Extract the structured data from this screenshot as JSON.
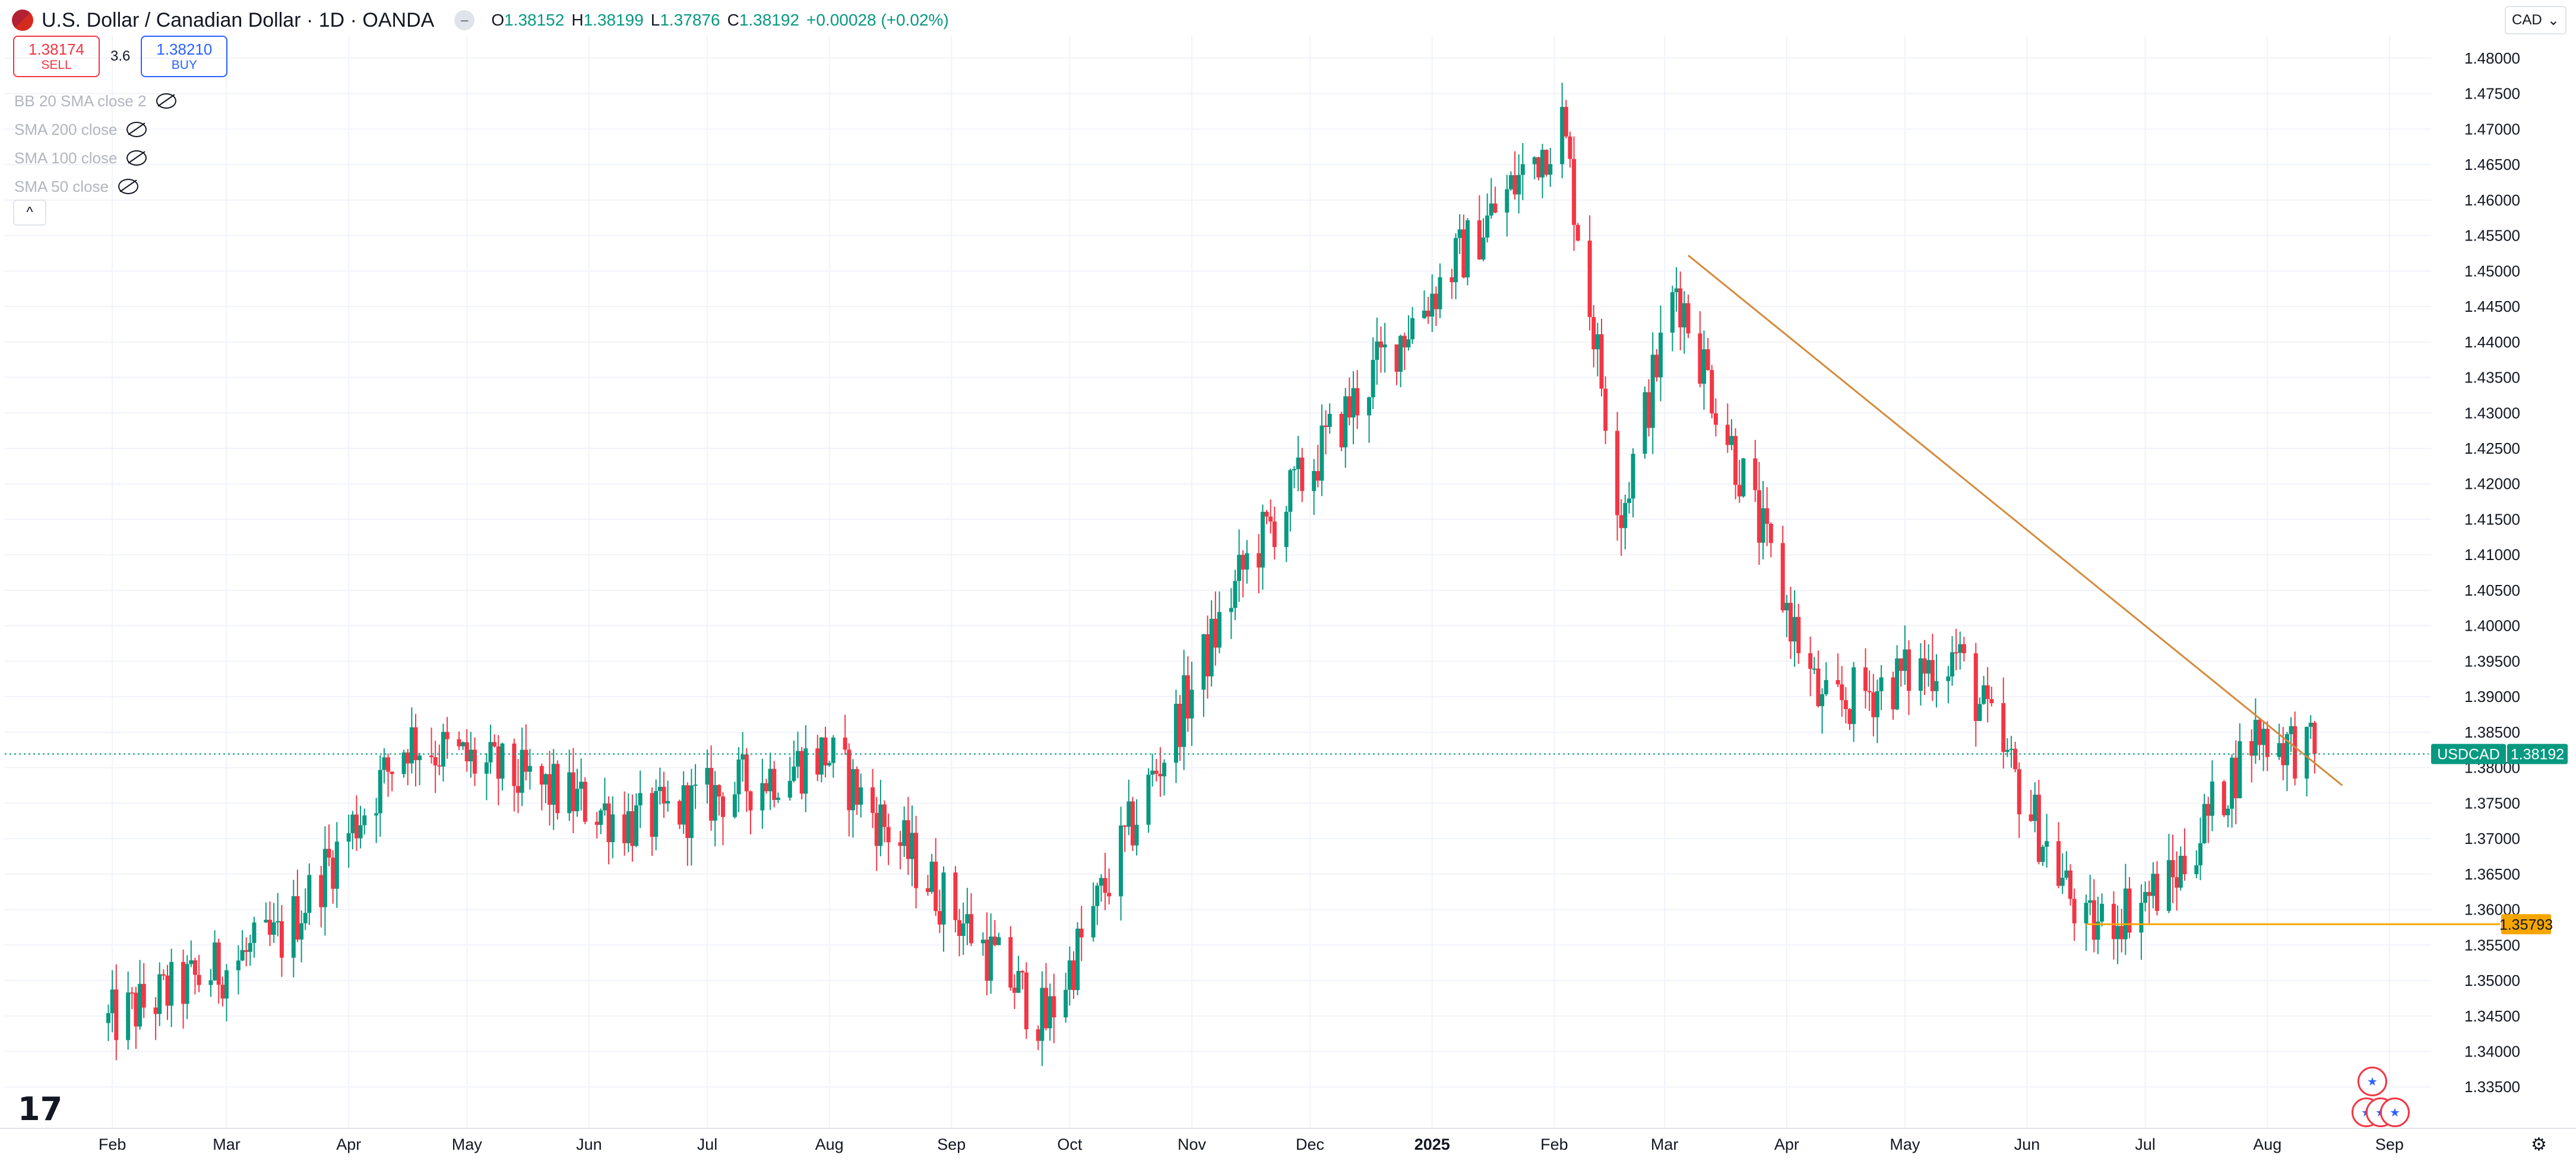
{
  "header": {
    "symbol_title": "U.S. Dollar / Canadian Dollar · 1D · OANDA",
    "ohlc": {
      "o_label": "O",
      "o": "1.38152",
      "h_label": "H",
      "h": "1.38199",
      "l_label": "L",
      "l": "1.37876",
      "c_label": "C",
      "c": "1.38192",
      "change": "+0.00028 (+0.02%)"
    }
  },
  "trade": {
    "sell_price": "1.38174",
    "sell_label": "SELL",
    "spread": "3.6",
    "buy_price": "1.38210",
    "buy_label": "BUY"
  },
  "indicators": [
    {
      "label": "BB 20 SMA close 2"
    },
    {
      "label": "SMA 200 close"
    },
    {
      "label": "SMA 100 close"
    },
    {
      "label": "SMA 50 close"
    }
  ],
  "collapse_icon": "chevron-up-icon",
  "currency_selector": {
    "value": "CAD"
  },
  "colors": {
    "up": "#089981",
    "down": "#f23645",
    "trendline": "#d48a3b",
    "support": "#f7a600",
    "grid": "#f0f3fa",
    "axis_text": "#131722"
  },
  "chart_data": {
    "type": "candlestick",
    "symbol": "USDCAD",
    "interval": "1D",
    "y_axis": {
      "ticks": [
        "1.48000",
        "1.47500",
        "1.47000",
        "1.46500",
        "1.46000",
        "1.45500",
        "1.45000",
        "1.44500",
        "1.44000",
        "1.43500",
        "1.43000",
        "1.42500",
        "1.42000",
        "1.41500",
        "1.41000",
        "1.40500",
        "1.40000",
        "1.39500",
        "1.39000",
        "1.38500",
        "1.38000",
        "1.37500",
        "1.37000",
        "1.36500",
        "1.36000",
        "1.35500",
        "1.35000",
        "1.34500",
        "1.34000",
        "1.33500"
      ],
      "range": [
        1.3305,
        1.4815
      ]
    },
    "x_axis": {
      "labels": [
        "Feb",
        "Mar",
        "Apr",
        "May",
        "Jun",
        "Jul",
        "Aug",
        "Sep",
        "Oct",
        "Nov",
        "Dec",
        "2025",
        "Feb",
        "Mar",
        "Apr",
        "May",
        "Jun",
        "Jul",
        "Aug",
        "Sep"
      ]
    },
    "last_price": {
      "label": "USDCAD",
      "value": "1.38192",
      "price": 1.38192
    },
    "support_line": {
      "price": 1.35793,
      "label": "1.35793"
    },
    "trendline": {
      "start_price": 1.4522,
      "end_price": 1.3775
    },
    "key_points": [
      {
        "date": "2024-01-31",
        "close": 1.344
      },
      {
        "date": "2024-03-15",
        "close": 1.356
      },
      {
        "date": "2024-04-16",
        "close": 1.384
      },
      {
        "date": "2024-06-14",
        "close": 1.372
      },
      {
        "date": "2024-07-31",
        "close": 1.382
      },
      {
        "date": "2024-09-25",
        "close": 1.344
      },
      {
        "date": "2024-11-15",
        "close": 1.409
      },
      {
        "date": "2024-12-20",
        "close": 1.438
      },
      {
        "date": "2025-02-03",
        "close": 1.471
      },
      {
        "date": "2025-02-18",
        "close": 1.416
      },
      {
        "date": "2025-03-04",
        "close": 1.448
      },
      {
        "date": "2025-04-10",
        "close": 1.388
      },
      {
        "date": "2025-05-14",
        "close": 1.396
      },
      {
        "date": "2025-06-16",
        "close": 1.357
      },
      {
        "date": "2025-07-08",
        "close": 1.364
      },
      {
        "date": "2025-07-29",
        "close": 1.385
      },
      {
        "date": "2025-08-13",
        "close": 1.3819
      }
    ]
  }
}
